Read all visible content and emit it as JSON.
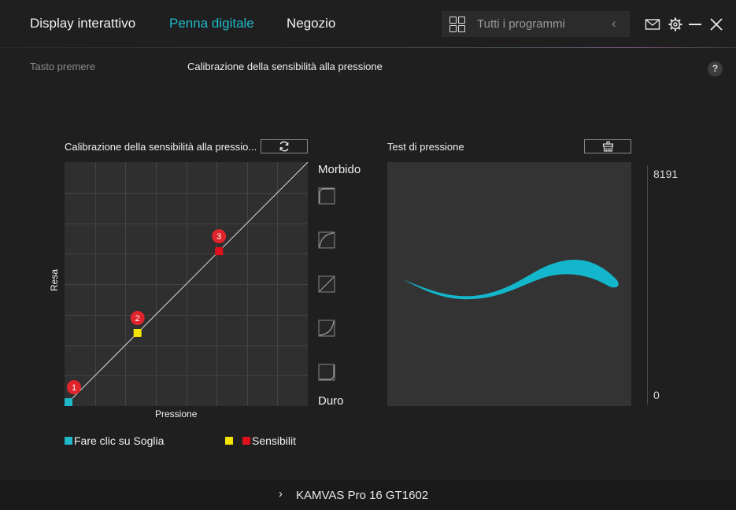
{
  "header": {
    "tabs": [
      {
        "label": "Display interattivo",
        "active": false
      },
      {
        "label": "Penna digitale",
        "active": true
      },
      {
        "label": "Negozio",
        "active": false
      }
    ],
    "search": {
      "placeholder": "Tutti i programmi",
      "back_icon": "chevron-left-icon"
    },
    "window_icons": [
      "mail-icon",
      "gear-icon",
      "minimize-icon",
      "close-icon"
    ]
  },
  "subnav": {
    "items": [
      "Tasto premere",
      "Calibrazione della sensibilità alla pressione"
    ],
    "help_label": "?"
  },
  "calibration": {
    "title": "Calibrazione della sensibilità alla pressio...",
    "reset_icon": "refresh-icon",
    "ylabel": "Resa",
    "xlabel": "Pressione",
    "soft_label": "Morbido",
    "hard_label": "Duro",
    "curve_presets": [
      "curve-soft-2-icon",
      "curve-soft-1-icon",
      "curve-linear-icon",
      "curve-hard-1-icon",
      "curve-hard-2-icon"
    ],
    "points": [
      {
        "label": "1",
        "pressure": 0.0,
        "output": 0.0,
        "color": "#1fb8c9"
      },
      {
        "label": "2",
        "pressure": 0.3,
        "output": 0.3,
        "color": "#f5e400"
      },
      {
        "label": "3",
        "pressure": 0.635,
        "output": 0.635,
        "color": "#e0101c"
      }
    ]
  },
  "pressure_test": {
    "title": "Test di pressione",
    "clear_icon": "clear-canvas-icon",
    "scale_max": "8191",
    "scale_min": "0",
    "stroke_color": "#14b6cc"
  },
  "legend": {
    "threshold_label": "Fare clic su Soglia",
    "threshold_color": "#1fb8c9",
    "sensitivity_label": "Sensibilit",
    "sensitivity_colors": [
      "#f5e400",
      "#e0101c"
    ]
  },
  "footer": {
    "device": "KAMVAS Pro 16 GT1602"
  },
  "colors": {
    "accent": "#1fb8c9",
    "background": "#1f1f1f",
    "panel": "#2f2f2f"
  }
}
